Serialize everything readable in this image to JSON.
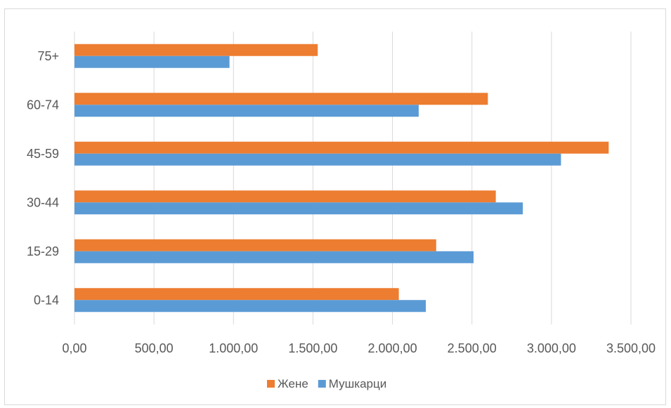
{
  "chart_data": {
    "type": "bar",
    "orientation": "horizontal",
    "categories": [
      "0-14",
      "15-29",
      "30-44",
      "45-59",
      "60-74",
      "75+"
    ],
    "series": [
      {
        "name": "Жене",
        "color": "#ED7D31",
        "values": [
          2040,
          2275,
          2650,
          3360,
          2600,
          1530
        ]
      },
      {
        "name": "Мушкарци",
        "color": "#5B9BD5",
        "values": [
          2210,
          2510,
          2820,
          3060,
          2165,
          975
        ]
      }
    ],
    "x_ticks": [
      "0,00",
      "500,00",
      "1.000,00",
      "1.500,00",
      "2.000,00",
      "2.500,00",
      "3.000,00",
      "3.500,00"
    ],
    "xlim": [
      0,
      3500
    ],
    "grid": "vertical",
    "legend_position": "bottom",
    "gridline_color": "#d9d9d9"
  }
}
